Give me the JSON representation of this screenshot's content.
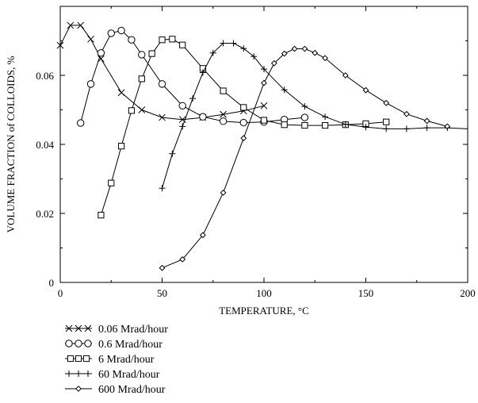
{
  "chart_data": {
    "type": "line",
    "title": "",
    "xlabel": "TEMPERATURE, °C",
    "ylabel": "VOLUME FRACTION of COLLOIDS, %",
    "xlim": [
      0,
      200
    ],
    "ylim": [
      0,
      0.08
    ],
    "x_ticks": [
      0,
      50,
      100,
      150,
      200
    ],
    "x_tick_labels": [
      "0",
      "50",
      "100",
      "150",
      "200"
    ],
    "y_ticks": [
      0,
      0.02,
      0.04,
      0.06
    ],
    "y_tick_labels": [
      "0",
      "0.02",
      "0.04",
      "0.06"
    ],
    "grid": false,
    "legend_position": "below-left",
    "series": [
      {
        "name": "0.06 Mrad/hour",
        "marker": "x",
        "x": [
          0,
          5,
          10,
          15,
          20,
          30,
          40,
          50,
          60,
          70,
          80,
          90,
          100
        ],
        "y": [
          0.0687,
          0.0745,
          0.0745,
          0.0705,
          0.0648,
          0.055,
          0.05,
          0.0478,
          0.0472,
          0.0478,
          0.0487,
          0.0497,
          0.0512
        ]
      },
      {
        "name": "0.6 Mrad/hour",
        "marker": "circle",
        "x": [
          10,
          15,
          20,
          25,
          30,
          35,
          40,
          50,
          60,
          70,
          80,
          90,
          100,
          110,
          120
        ],
        "y": [
          0.0462,
          0.0575,
          0.0665,
          0.0722,
          0.073,
          0.0703,
          0.066,
          0.0575,
          0.0512,
          0.048,
          0.0467,
          0.0463,
          0.0465,
          0.0472,
          0.0478
        ]
      },
      {
        "name": "6 Mrad/hour",
        "marker": "square",
        "x": [
          20,
          25,
          30,
          35,
          40,
          45,
          50,
          55,
          60,
          70,
          80,
          90,
          100,
          110,
          120,
          130,
          140,
          150,
          160
        ],
        "y": [
          0.0195,
          0.0288,
          0.0395,
          0.0498,
          0.059,
          0.0663,
          0.0703,
          0.0705,
          0.0688,
          0.062,
          0.0555,
          0.0507,
          0.047,
          0.0457,
          0.0455,
          0.0455,
          0.0457,
          0.046,
          0.0465
        ]
      },
      {
        "name": "60 Mrad/hour",
        "marker": "plus",
        "x": [
          50,
          55,
          60,
          65,
          70,
          75,
          80,
          85,
          90,
          95,
          100,
          110,
          120,
          130,
          140,
          150,
          160,
          170,
          180,
          190
        ],
        "y": [
          0.0273,
          0.0373,
          0.0452,
          0.0533,
          0.0608,
          0.0665,
          0.0693,
          0.0693,
          0.0678,
          0.0655,
          0.0618,
          0.0558,
          0.051,
          0.048,
          0.0458,
          0.045,
          0.0445,
          0.0445,
          0.0448,
          0.0448
        ]
      },
      {
        "name": "600 Mrad/hour",
        "marker": "diamond",
        "x": [
          50,
          60,
          70,
          80,
          90,
          100,
          105,
          110,
          115,
          120,
          125,
          130,
          140,
          150,
          160,
          170,
          180,
          190
        ],
        "y": [
          0.0042,
          0.0067,
          0.0137,
          0.026,
          0.0418,
          0.0578,
          0.0635,
          0.0663,
          0.0677,
          0.0677,
          0.0665,
          0.065,
          0.06,
          0.0557,
          0.052,
          0.0488,
          0.0468,
          0.0452
        ]
      }
    ],
    "tail_line": {
      "x": [
        190,
        200
      ],
      "y": [
        0.0448,
        0.0445
      ]
    }
  }
}
